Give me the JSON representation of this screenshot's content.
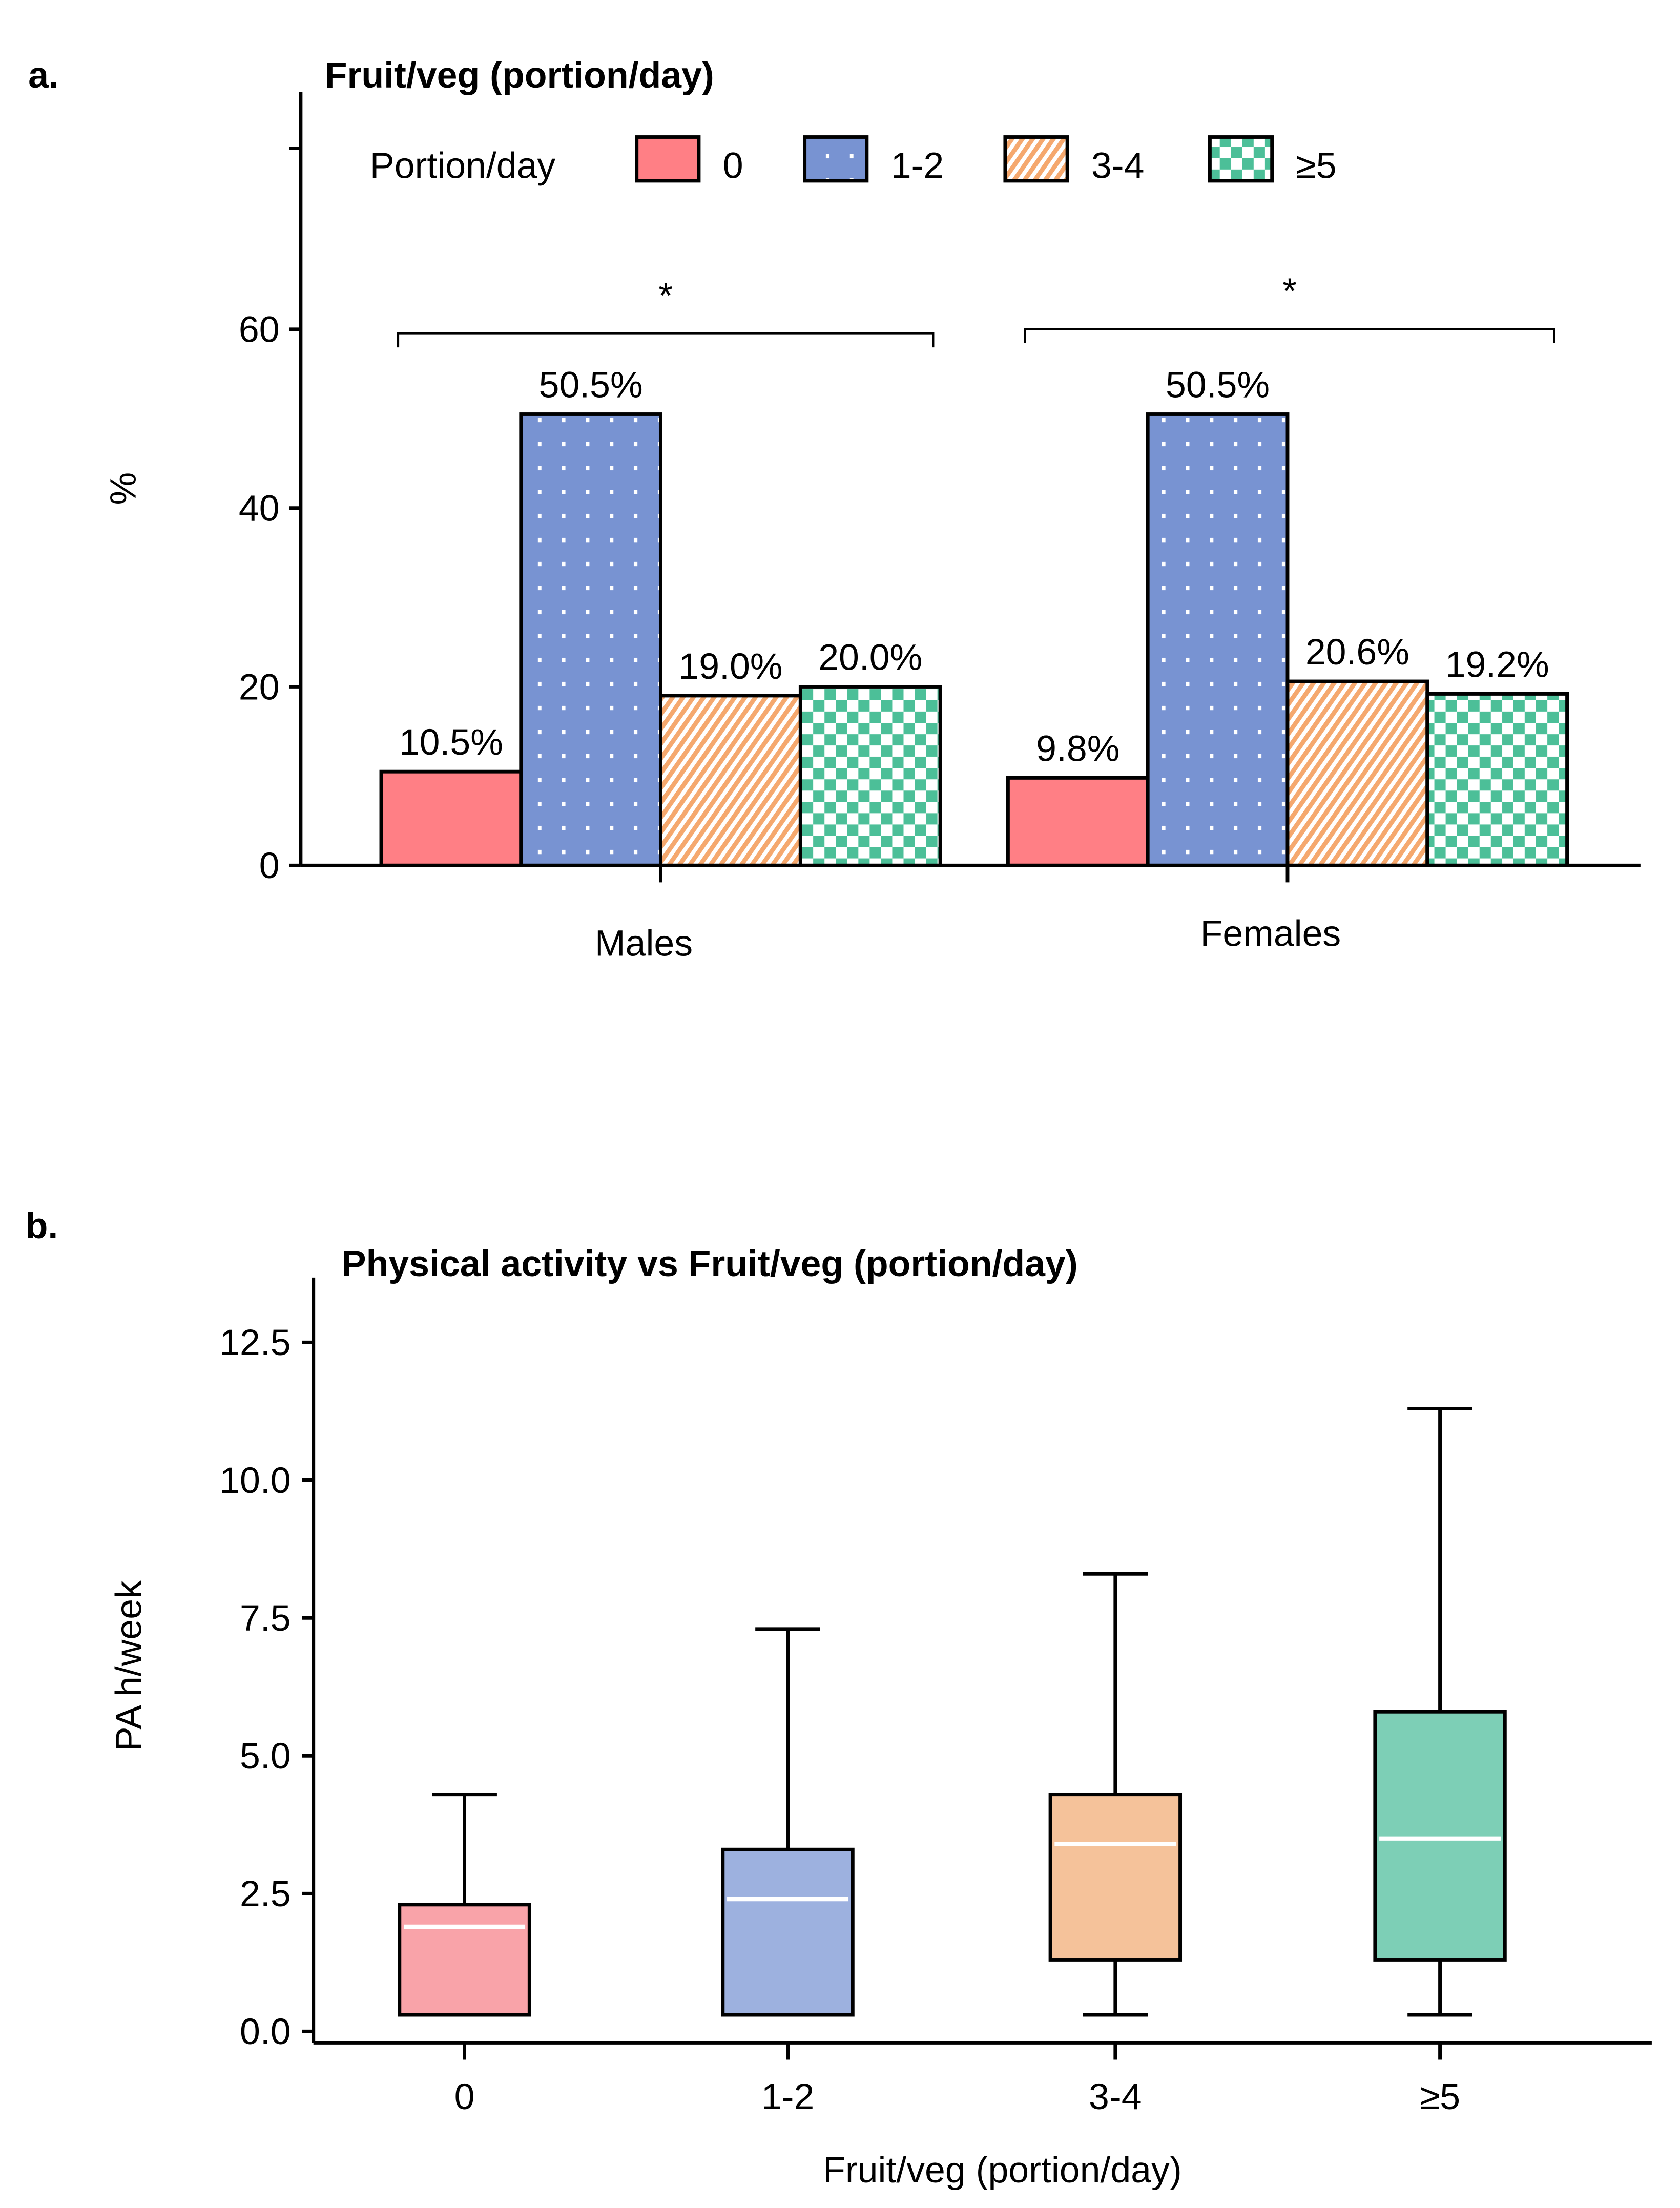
{
  "chart_data": [
    {
      "type": "bar",
      "panel_label": "a.",
      "title": "Fruit/veg (portion/day)",
      "ylabel": "%",
      "xlabel": "",
      "ylim": [
        0,
        80
      ],
      "yticks": [
        "0",
        "20",
        "40",
        "60"
      ],
      "categories": [
        "Males",
        "Females"
      ],
      "legend_title": "Portion/day",
      "legend_placement": "top",
      "series": [
        {
          "name": "0",
          "color": "#FF7F85",
          "pattern": "solid",
          "values": [
            10.5,
            9.8
          ],
          "labels": [
            "10.5%",
            "9.8%"
          ]
        },
        {
          "name": "1-2",
          "color": "#7893D2",
          "pattern": "dots",
          "values": [
            50.5,
            50.5
          ],
          "labels": [
            "50.5%",
            "50.5%"
          ]
        },
        {
          "name": "3-4",
          "color": "#F5A86E",
          "pattern": "diagonal",
          "values": [
            19.0,
            20.6
          ],
          "labels": [
            "19.0%",
            "20.6%"
          ]
        },
        {
          "name": "≥5",
          "color": "#4CBF98",
          "pattern": "checker",
          "values": [
            20.0,
            19.2
          ],
          "labels": [
            "20.0%",
            "19.2%"
          ]
        }
      ],
      "annotations": [
        "*",
        "*"
      ]
    },
    {
      "type": "box",
      "panel_label": "b.",
      "title": "Physical activity vs Fruit/veg (portion/day)",
      "ylabel": "PA h/week",
      "xlabel": "Fruit/veg (portion/day)",
      "ylim": [
        0,
        13.5
      ],
      "yticks": [
        "0.0",
        "2.5",
        "5.0",
        "7.5",
        "10.0",
        "12.5"
      ],
      "categories": [
        "0",
        "1-2",
        "3-4",
        "≥5"
      ],
      "colors": [
        "#F9A3A9",
        "#9DB1DF",
        "#F5C29A",
        "#7DCFB6"
      ],
      "boxes": [
        {
          "min": 0.3,
          "q1": 0.3,
          "median": 1.9,
          "q3": 2.3,
          "max": 4.3
        },
        {
          "min": 0.3,
          "q1": 0.3,
          "median": 2.4,
          "q3": 3.3,
          "max": 7.3
        },
        {
          "min": 0.3,
          "q1": 1.3,
          "median": 3.4,
          "q3": 4.3,
          "max": 8.3
        },
        {
          "min": 0.3,
          "q1": 1.3,
          "median": 3.5,
          "q3": 5.8,
          "max": 11.3
        }
      ]
    }
  ]
}
